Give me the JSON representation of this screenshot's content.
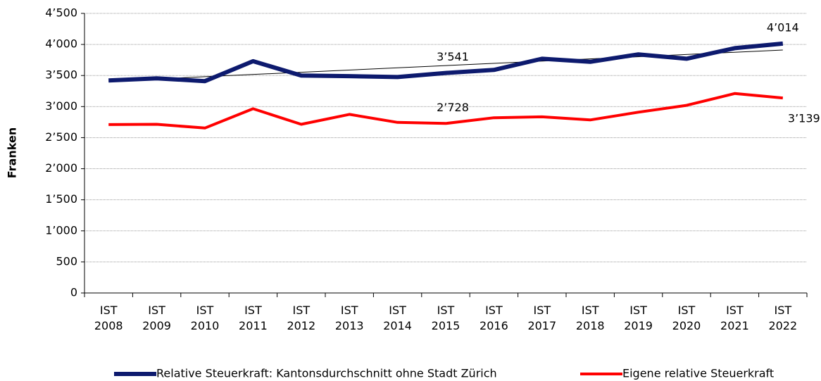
{
  "chart_data": {
    "type": "line",
    "ylabel": "Franken",
    "categories": [
      "IST 2008",
      "IST 2009",
      "IST 2010",
      "IST 2011",
      "IST 2012",
      "IST 2013",
      "IST 2014",
      "IST 2015",
      "IST 2016",
      "IST 2017",
      "IST 2018",
      "IST 2019",
      "IST 2020",
      "IST 2021",
      "IST 2022"
    ],
    "series": [
      {
        "name": "Relative Steuerkraft: Kantonsdurchschnitt ohne Stadt Zürich",
        "color": "#0d1a6e",
        "values": [
          3420,
          3455,
          3410,
          3730,
          3500,
          3490,
          3475,
          3541,
          3590,
          3770,
          3720,
          3840,
          3770,
          3940,
          4014
        ],
        "value_labels": [
          null,
          null,
          null,
          null,
          null,
          null,
          null,
          "3’541",
          null,
          null,
          null,
          null,
          null,
          null,
          "4’014"
        ]
      },
      {
        "name": "Eigene relative Steuerkraft",
        "color": "#ff0000",
        "values": [
          2710,
          2715,
          2655,
          2965,
          2715,
          2875,
          2745,
          2728,
          2820,
          2835,
          2785,
          2910,
          3020,
          3210,
          3139
        ],
        "value_labels": [
          null,
          null,
          null,
          null,
          null,
          null,
          null,
          "2’728",
          null,
          null,
          null,
          null,
          null,
          null,
          "3’139"
        ]
      }
    ],
    "trendline": {
      "start": 3410,
      "end": 3910,
      "color": "#000000"
    },
    "ylim": [
      0,
      4500
    ],
    "yticks": [
      0,
      500,
      {
        "value": 1000,
        "label": "1’000"
      },
      {
        "value": 1500,
        "label": "1’500"
      },
      {
        "value": 2000,
        "label": "2’000"
      },
      {
        "value": 2500,
        "label": "2’500"
      },
      {
        "value": 3000,
        "label": "3’000"
      },
      {
        "value": 3500,
        "label": "3’500"
      },
      {
        "value": 4000,
        "label": "4’000"
      },
      {
        "value": 4500,
        "label": "4’500"
      }
    ],
    "grid": true
  }
}
